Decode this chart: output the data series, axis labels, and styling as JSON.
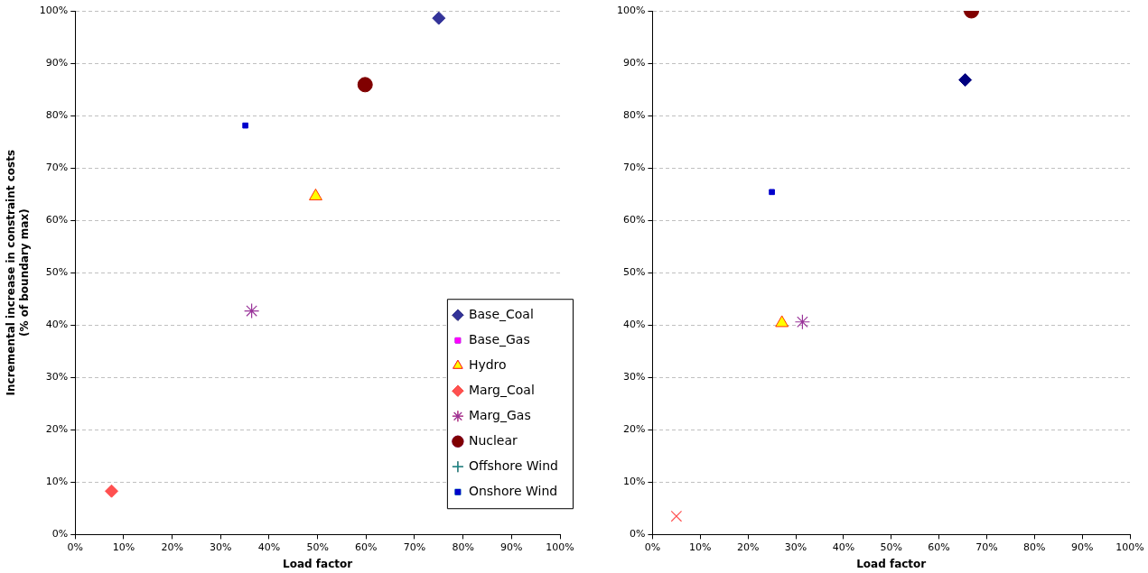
{
  "chart_data": [
    {
      "type": "scatter",
      "xlabel": "Load factor",
      "ylabel": "Incremental increase in constraint costs\n(% of boundary max)",
      "xlim": [
        0,
        100
      ],
      "ylim": [
        0,
        100
      ],
      "xticks": [
        {
          "value": 0,
          "label": "0%"
        },
        {
          "value": 10,
          "label": "10%"
        },
        {
          "value": 20,
          "label": "20%"
        },
        {
          "value": 30,
          "label": "30%"
        },
        {
          "value": 40,
          "label": "40%"
        },
        {
          "value": 50,
          "label": "50%"
        },
        {
          "value": 60,
          "label": "60%"
        },
        {
          "value": 70,
          "label": "70%"
        },
        {
          "value": 80,
          "label": "80%"
        },
        {
          "value": 90,
          "label": "90%"
        },
        {
          "value": 100,
          "label": "100%"
        }
      ],
      "yticks": [
        {
          "value": 0,
          "label": "0%"
        },
        {
          "value": 10,
          "label": "10%"
        },
        {
          "value": 20,
          "label": "20%"
        },
        {
          "value": 30,
          "label": "30%"
        },
        {
          "value": 40,
          "label": "40%"
        },
        {
          "value": 50,
          "label": "50%"
        },
        {
          "value": 60,
          "label": "60%"
        },
        {
          "value": 70,
          "label": "70%"
        },
        {
          "value": 80,
          "label": "80%"
        },
        {
          "value": 90,
          "label": "90%"
        },
        {
          "value": 100,
          "label": "100%"
        }
      ],
      "grid": "y",
      "legend": "right",
      "series": [
        {
          "name": "Base_Coal",
          "color": "#333399",
          "marker": "diamond",
          "x": [
            75
          ],
          "values": [
            98.6
          ]
        },
        {
          "name": "Base_Gas",
          "color": "#ff00ff",
          "marker": "square",
          "x": [
            null
          ],
          "values": [
            null
          ]
        },
        {
          "name": "Hydro",
          "color": "#ffff00",
          "marker": "triangle",
          "x": [
            49.6
          ],
          "values": [
            64.6
          ]
        },
        {
          "name": "Marg_Coal",
          "color": "#ff5050",
          "marker": "diamond",
          "x": [
            7.5
          ],
          "values": [
            8.3
          ]
        },
        {
          "name": "Marg_Gas",
          "color": "#993399",
          "x": [
            36.4
          ],
          "values": [
            42.7
          ]
        },
        {
          "name": "Nuclear",
          "color": "#800000",
          "marker": "circle",
          "x": [
            59.8
          ],
          "values": [
            85.9
          ]
        },
        {
          "name": "Offshore Wind",
          "color": "#009999",
          "marker": "plus",
          "x": [
            null
          ],
          "values": [
            null
          ]
        },
        {
          "name": "Onshore Wind",
          "color": "#0000cc",
          "marker": "square",
          "x": [
            35.1
          ],
          "values": [
            78.1
          ]
        }
      ]
    },
    {
      "type": "scatter",
      "xlabel": "Load factor",
      "xlim": [
        0,
        100
      ],
      "ylim": [
        0,
        100
      ],
      "xticks": [
        {
          "value": 0,
          "label": "0%"
        },
        {
          "value": 10,
          "label": "10%"
        },
        {
          "value": 20,
          "label": "20%"
        },
        {
          "value": 30,
          "label": "30%"
        },
        {
          "value": 40,
          "label": "40%"
        },
        {
          "value": 50,
          "label": "50%"
        },
        {
          "value": 60,
          "label": "60%"
        },
        {
          "value": 70,
          "label": "70%"
        },
        {
          "value": 80,
          "label": "80%"
        },
        {
          "value": 90,
          "label": "90%"
        },
        {
          "value": 100,
          "label": "100%"
        }
      ],
      "yticks": [
        {
          "value": 0,
          "label": "0%"
        },
        {
          "value": 10,
          "label": "10%"
        },
        {
          "value": 20,
          "label": "20%"
        },
        {
          "value": 30,
          "label": "30%"
        },
        {
          "value": 40,
          "label": "40%"
        },
        {
          "value": 50,
          "label": "50%"
        },
        {
          "value": 60,
          "label": "60%"
        },
        {
          "value": 70,
          "label": "70%"
        },
        {
          "value": 80,
          "label": "80%"
        },
        {
          "value": 90,
          "label": "90%"
        },
        {
          "value": 100,
          "label": "100%"
        }
      ],
      "grid": "y",
      "legend": false,
      "series": [
        {
          "color": "#000080",
          "marker": "diamond",
          "x": [
            65.5
          ],
          "values": [
            86.8
          ]
        },
        {
          "color": "#ffff00",
          "marker": "triangle",
          "x": [
            27.1
          ],
          "values": [
            40.4
          ]
        },
        {
          "color": "#ff5050",
          "marker": "cross",
          "x": [
            5
          ],
          "values": [
            3.5
          ]
        },
        {
          "color": "#993399",
          "x": [
            31.4
          ],
          "values": [
            40.6
          ]
        },
        {
          "color": "#800000",
          "marker": "circle",
          "x": [
            66.8
          ],
          "values": [
            100
          ]
        },
        {
          "color": "#0000cc",
          "marker": "square",
          "x": [
            25
          ],
          "values": [
            65.4
          ]
        }
      ]
    }
  ]
}
